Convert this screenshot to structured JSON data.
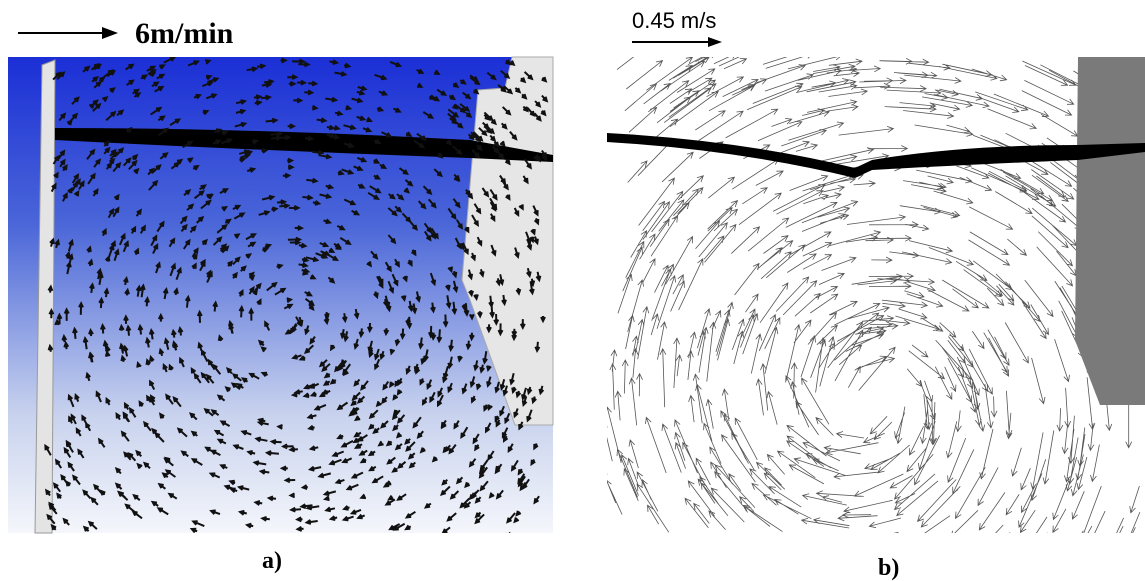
{
  "panels": [
    {
      "scale_label": "6m/min",
      "caption": "a)"
    },
    {
      "scale_label": "0.45 m/s",
      "caption": "b)"
    }
  ]
}
